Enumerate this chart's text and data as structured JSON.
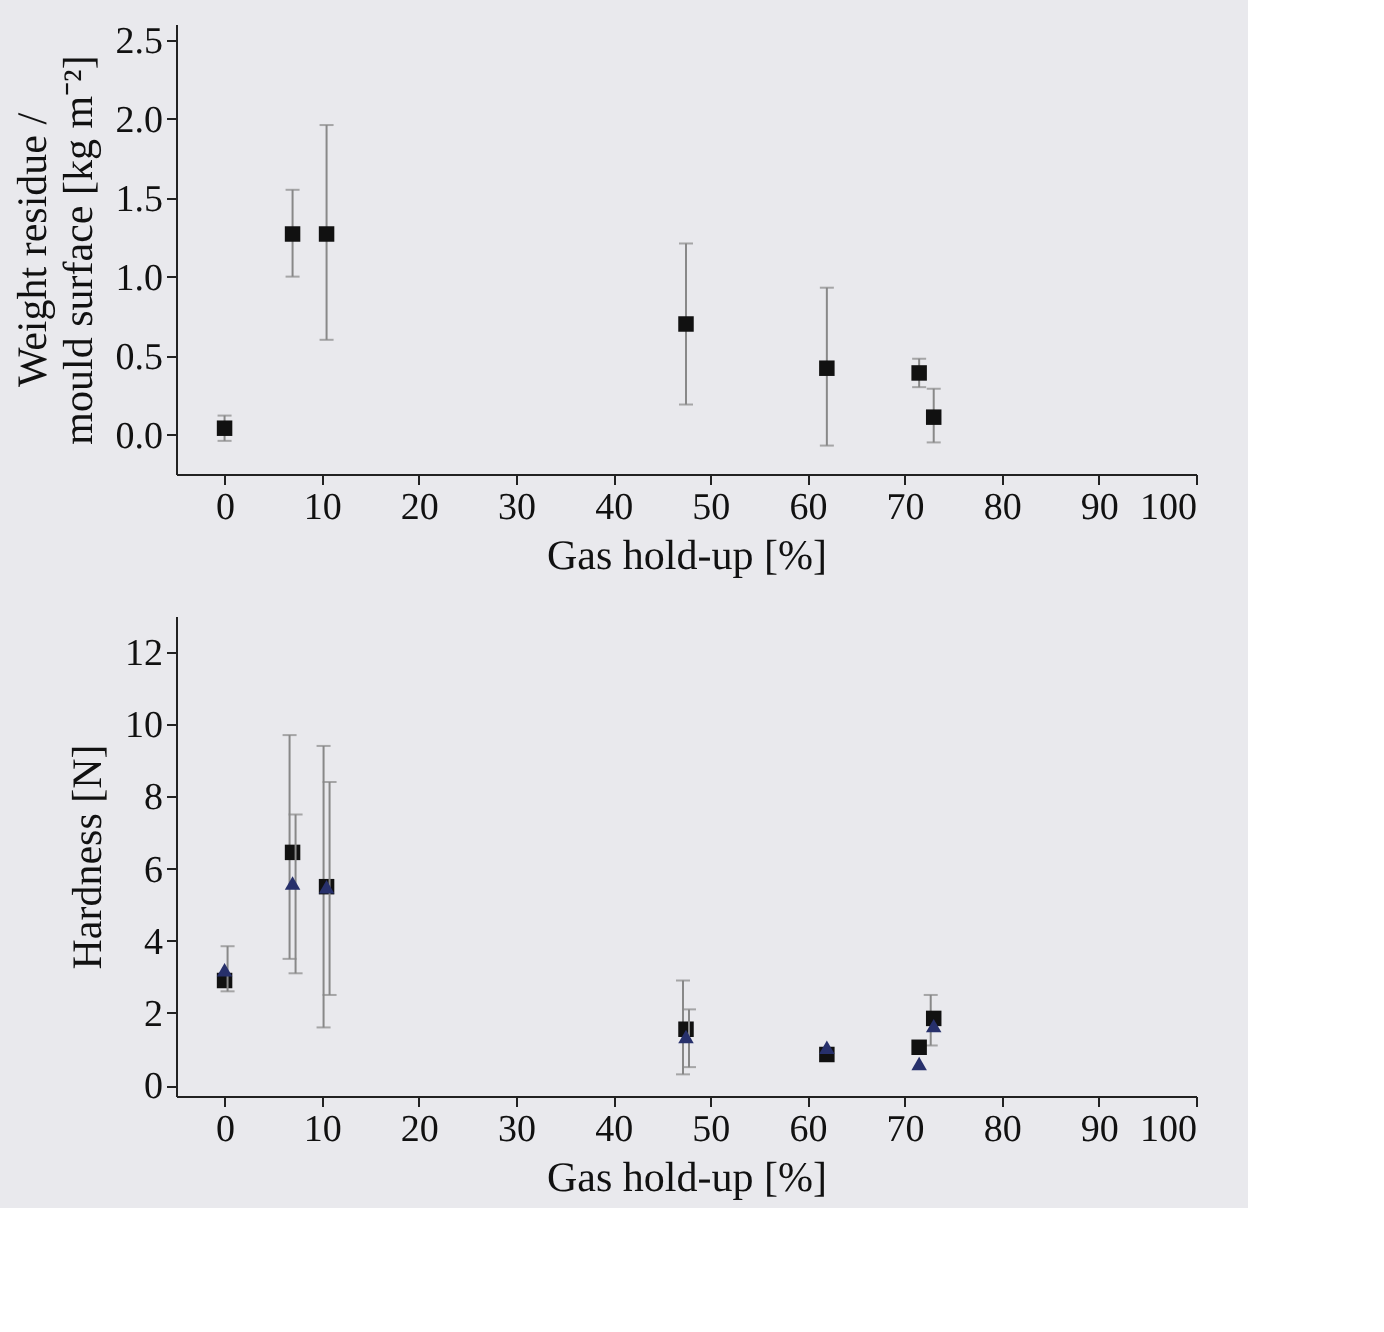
{
  "chart_data": [
    {
      "type": "scatter",
      "xlabel": "Gas hold-up [%]",
      "ylabel": "Weight residue / mould surface [kg m⁻²]",
      "x": [
        0,
        7,
        10.5,
        47.5,
        62,
        71.5,
        73
      ],
      "xlim": [
        -5,
        100
      ],
      "xticks": [
        0,
        10,
        20,
        30,
        40,
        50,
        60,
        70,
        80,
        90,
        100
      ],
      "ylim": [
        -0.25,
        2.6
      ],
      "yticks": [
        {
          "value": 0,
          "label": "0.0"
        },
        {
          "value": 0.5,
          "label": "0.5"
        },
        {
          "value": 1,
          "label": "1.0"
        },
        {
          "value": 1.5,
          "label": "1.5"
        },
        {
          "value": 2,
          "label": "2.0"
        },
        {
          "value": 2.5,
          "label": "2.5"
        }
      ],
      "grid": false,
      "legend": false,
      "series": [
        {
          "color": "#111111",
          "marker": "square",
          "values": [
            0.04,
            1.27,
            1.27,
            0.7,
            0.42,
            0.39,
            0.11
          ],
          "errors": [
            [
              -0.04,
              0.12
            ],
            [
              1.0,
              1.55
            ],
            [
              0.6,
              1.96
            ],
            [
              0.19,
              1.21
            ],
            [
              -0.07,
              0.93
            ],
            [
              0.3,
              0.48
            ],
            [
              -0.05,
              0.29
            ]
          ]
        }
      ]
    },
    {
      "type": "scatter",
      "xlabel": "Gas hold-up [%]",
      "ylabel": "Hardness [N]",
      "x": [
        0,
        7,
        10.5,
        47.5,
        62,
        71.5,
        73
      ],
      "xlim": [
        -5,
        100
      ],
      "xticks": [
        0,
        10,
        20,
        30,
        40,
        50,
        60,
        70,
        80,
        90,
        100
      ],
      "ylim": [
        -0.3,
        13
      ],
      "yticks": [
        0,
        2,
        4,
        6,
        8,
        10,
        12
      ],
      "grid": false,
      "legend": false,
      "series": [
        {
          "color": "#111111",
          "marker": "square",
          "values": [
            2.9,
            6.45,
            5.5,
            1.55,
            0.85,
            1.05,
            1.85
          ],
          "errors": [
            null,
            [
              3.5,
              9.7
            ],
            [
              1.6,
              9.4
            ],
            [
              0.3,
              2.9
            ],
            null,
            null,
            [
              1.1,
              2.5
            ]
          ]
        },
        {
          "color": "#27306b",
          "marker": "triangle",
          "values": [
            3.2,
            5.6,
            5.5,
            1.35,
            1.05,
            0.6,
            1.65
          ],
          "errors": [
            [
              2.6,
              3.85
            ],
            [
              3.1,
              7.5
            ],
            [
              2.5,
              8.4
            ],
            [
              0.5,
              2.1
            ],
            null,
            null,
            null
          ]
        }
      ]
    }
  ]
}
